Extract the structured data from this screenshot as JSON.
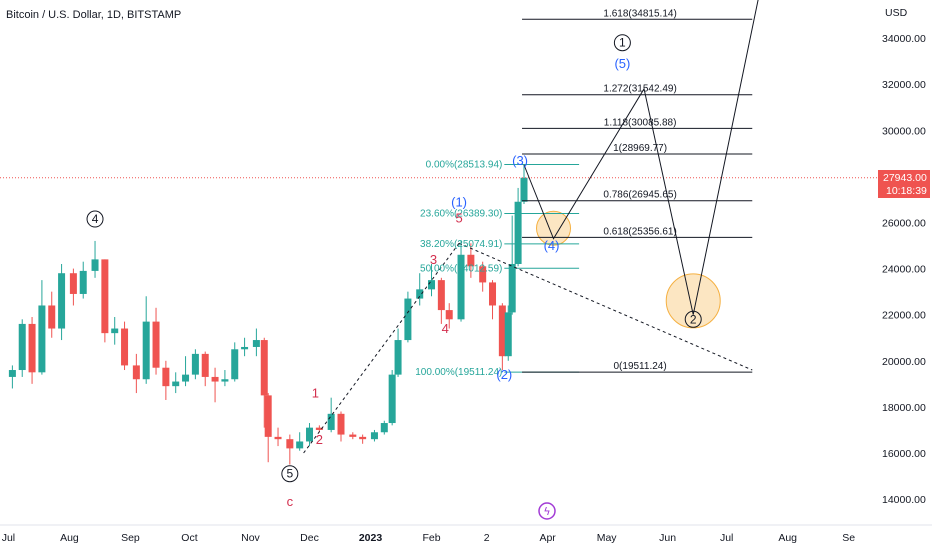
{
  "header": {
    "title": "Bitcoin / U.S. Dollar, 1D, BITSTAMP"
  },
  "price_axis": {
    "currency": "USD",
    "current_price": "27943.00",
    "countdown": "10:18:39",
    "ticks": [
      "34000.00",
      "32000.00",
      "30000.00",
      "28000.00",
      "26000.00",
      "24000.00",
      "22000.00",
      "20000.00",
      "18000.00",
      "16000.00",
      "14000.00"
    ]
  },
  "time_axis": {
    "ticks": [
      "Jul",
      "Aug",
      "Sep",
      "Oct",
      "Nov",
      "Dec",
      "2023",
      "Feb",
      "2",
      "Apr",
      "May",
      "Jun",
      "Jul",
      "Aug",
      "Se"
    ]
  },
  "colors": {
    "up": "#26a69a",
    "down": "#ef5350",
    "fib": "#26a69a",
    "wave_blue": "#2962ff",
    "wave_red": "#d32f4e",
    "highlight": "#f5b041",
    "price_line": "#ef5350"
  },
  "chart_data": {
    "type": "candlestick",
    "title": "Bitcoin / U.S. Dollar, 1D, BITSTAMP",
    "x_range": [
      "2022-07-01",
      "2023-09-05"
    ],
    "y_range": [
      13000,
      35300
    ],
    "grid": false,
    "ohlc": [
      [
        "2022-07-03",
        19300,
        19800,
        18800,
        19600
      ],
      [
        "2022-07-08",
        19600,
        21800,
        19300,
        21600
      ],
      [
        "2022-07-13",
        21600,
        21900,
        19000,
        19500
      ],
      [
        "2022-07-18",
        19500,
        23500,
        19400,
        22400
      ],
      [
        "2022-07-23",
        22400,
        23000,
        21000,
        21400
      ],
      [
        "2022-07-28",
        21400,
        24200,
        20900,
        23800
      ],
      [
        "2022-08-03",
        23800,
        24000,
        22400,
        22900
      ],
      [
        "2022-08-08",
        22900,
        24300,
        22700,
        23900
      ],
      [
        "2022-08-14",
        23900,
        25200,
        23600,
        24400
      ],
      [
        "2022-08-19",
        24400,
        24400,
        20800,
        21200
      ],
      [
        "2022-08-24",
        21200,
        21900,
        20700,
        21400
      ],
      [
        "2022-08-29",
        21400,
        21700,
        19600,
        19800
      ],
      [
        "2022-09-04",
        19800,
        20300,
        18600,
        19200
      ],
      [
        "2022-09-09",
        19200,
        22800,
        19000,
        21700
      ],
      [
        "2022-09-14",
        21700,
        22300,
        19400,
        19700
      ],
      [
        "2022-09-19",
        19700,
        20000,
        18300,
        18900
      ],
      [
        "2022-09-24",
        18900,
        19500,
        18600,
        19100
      ],
      [
        "2022-09-29",
        19100,
        20200,
        18900,
        19400
      ],
      [
        "2022-10-04",
        19400,
        20500,
        19200,
        20300
      ],
      [
        "2022-10-09",
        20300,
        20400,
        18900,
        19300
      ],
      [
        "2022-10-14",
        19300,
        19700,
        18200,
        19100
      ],
      [
        "2022-10-19",
        19100,
        19600,
        18900,
        19200
      ],
      [
        "2022-10-24",
        19200,
        20800,
        19100,
        20500
      ],
      [
        "2022-10-29",
        20500,
        21000,
        20200,
        20600
      ],
      [
        "2022-11-04",
        20600,
        21400,
        20200,
        20900
      ],
      [
        "2022-11-08",
        20900,
        21000,
        17100,
        18500
      ],
      [
        "2022-11-10",
        18500,
        18600,
        15600,
        16700
      ],
      [
        "2022-11-15",
        16700,
        17100,
        16300,
        16600
      ],
      [
        "2022-11-21",
        16600,
        16800,
        15500,
        16200
      ],
      [
        "2022-11-26",
        16200,
        16900,
        16100,
        16500
      ],
      [
        "2022-12-01",
        16500,
        17300,
        16300,
        17100
      ],
      [
        "2022-12-06",
        17100,
        17200,
        16900,
        17000
      ],
      [
        "2022-12-12",
        17000,
        18400,
        16900,
        17700
      ],
      [
        "2022-12-17",
        17700,
        17800,
        16500,
        16800
      ],
      [
        "2022-12-23",
        16800,
        16900,
        16600,
        16700
      ],
      [
        "2022-12-28",
        16700,
        16800,
        16400,
        16600
      ],
      [
        "2023-01-03",
        16600,
        17000,
        16500,
        16900
      ],
      [
        "2023-01-08",
        16900,
        17400,
        16800,
        17300
      ],
      [
        "2023-01-12",
        17300,
        19600,
        17200,
        19400
      ],
      [
        "2023-01-15",
        19400,
        21400,
        19300,
        20900
      ],
      [
        "2023-01-20",
        20900,
        23000,
        20800,
        22700
      ],
      [
        "2023-01-26",
        22700,
        23800,
        22400,
        23100
      ],
      [
        "2023-02-01",
        23100,
        24200,
        22800,
        23500
      ],
      [
        "2023-02-06",
        23500,
        23600,
        21600,
        22200
      ],
      [
        "2023-02-10",
        22200,
        22500,
        21400,
        21800
      ],
      [
        "2023-02-16",
        21800,
        25200,
        21700,
        24600
      ],
      [
        "2023-02-21",
        24600,
        25100,
        23600,
        24100
      ],
      [
        "2023-02-27",
        24100,
        24300,
        23000,
        23400
      ],
      [
        "2023-03-04",
        23400,
        23500,
        21800,
        22400
      ],
      [
        "2023-03-09",
        22400,
        22500,
        19600,
        20200
      ],
      [
        "2023-03-12",
        20200,
        22400,
        20000,
        22100
      ],
      [
        "2023-03-14",
        22100,
        26300,
        22000,
        24200
      ],
      [
        "2023-03-17",
        24200,
        27500,
        24100,
        26900
      ],
      [
        "2023-03-20",
        26900,
        28500,
        26800,
        27943
      ]
    ]
  },
  "annotations": {
    "fib_left": [
      {
        "text": "0.00%(28513.94)",
        "price": 28513.94
      },
      {
        "text": "23.60%(26389.30)",
        "price": 26389.3
      },
      {
        "text": "38.20%(25074.91)",
        "price": 25074.91
      },
      {
        "text": "50.00%(24012.59)",
        "price": 24012.59
      },
      {
        "text": "100.00%(19511.24)",
        "price": 19511.24
      }
    ],
    "fib_right": [
      {
        "text": "1.618(34815.14)",
        "price": 34815.14
      },
      {
        "text": "1.272(31542.49)",
        "price": 31542.49
      },
      {
        "text": "1.118(30085.88)",
        "price": 30085.88
      },
      {
        "text": "1(28969.77)",
        "price": 28969.77
      },
      {
        "text": "0.786(26945.65)",
        "price": 26945.65
      },
      {
        "text": "0.618(25356.61)",
        "price": 25356.61
      },
      {
        "text": "0(19511.24)",
        "price": 19511.24
      }
    ],
    "circled": [
      {
        "text": "4",
        "date": "2022-08-14",
        "price": 26150
      },
      {
        "text": "5",
        "date": "2022-11-21",
        "price": 15100
      },
      {
        "text": "1",
        "date": "2023-05-09",
        "price": 33800
      },
      {
        "text": "2",
        "date": "2023-06-14",
        "price": 21800
      }
    ],
    "wave_blue": [
      {
        "text": "(5)",
        "date": "2023-05-09",
        "price": 32700
      },
      {
        "text": "(3)",
        "date": "2023-03-18",
        "price": 28500
      },
      {
        "text": "(1)",
        "date": "2023-02-15",
        "price": 26700
      },
      {
        "text": "(4)",
        "date": "2023-04-03",
        "price": 24800
      },
      {
        "text": "(2)",
        "date": "2023-03-10",
        "price": 19200
      }
    ],
    "wave_red": [
      {
        "text": "5",
        "date": "2023-02-15",
        "price": 26000
      },
      {
        "text": "3",
        "date": "2023-02-02",
        "price": 24200
      },
      {
        "text": "4",
        "date": "2023-02-08",
        "price": 21200
      },
      {
        "text": "1",
        "date": "2022-12-04",
        "price": 18400
      },
      {
        "text": "2",
        "date": "2022-12-06",
        "price": 16400
      },
      {
        "text": "c",
        "date": "2022-11-21",
        "price": 13700
      }
    ]
  }
}
